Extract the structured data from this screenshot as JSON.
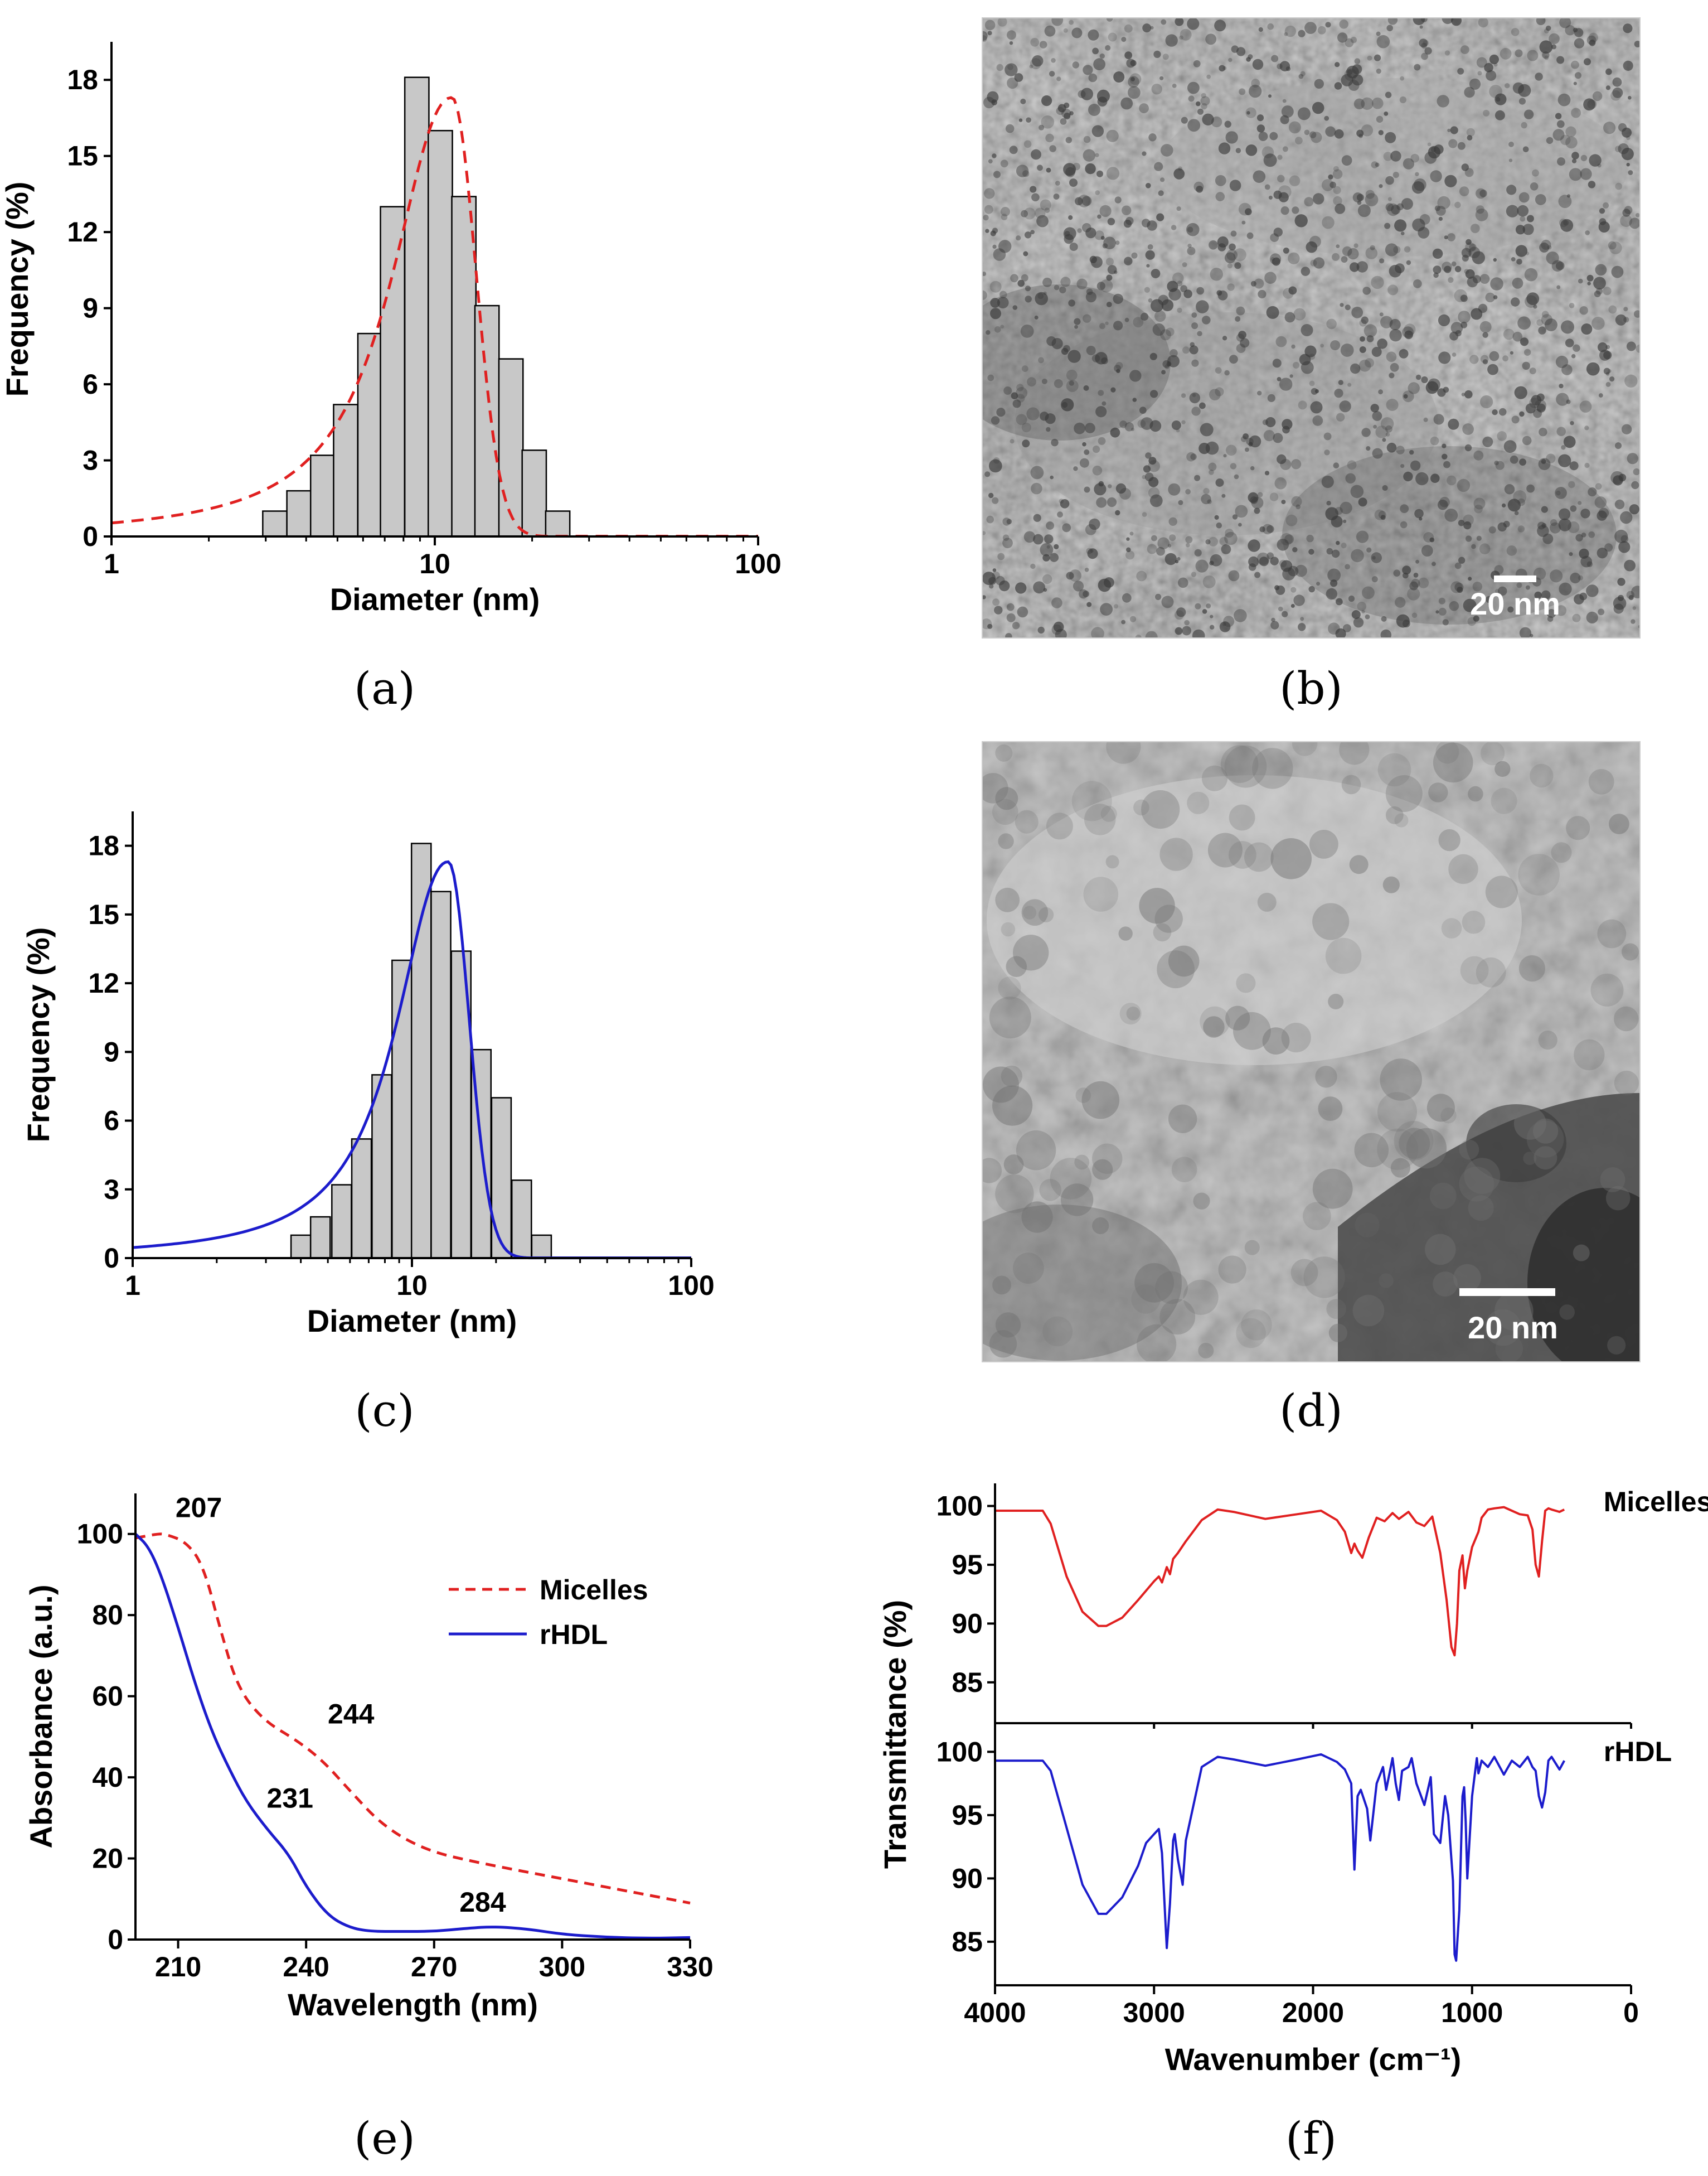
{
  "chart_data": [
    {
      "id": "a",
      "type": "bar",
      "caption": "(a)",
      "xlabel": "Diameter (nm)",
      "ylabel": "Frequency (%)",
      "xscale": "log",
      "xlim": [
        1,
        100
      ],
      "ylim": [
        0,
        19.5
      ],
      "xticks": [
        1,
        10,
        100
      ],
      "yticks": [
        0,
        3,
        6,
        9,
        12,
        15,
        18
      ],
      "bar_centers": [
        3.2,
        3.8,
        4.5,
        5.3,
        6.3,
        7.4,
        8.8,
        10.4,
        12.3,
        14.5,
        17.2,
        20.3,
        24.0
      ],
      "values": [
        1.0,
        1.8,
        3.2,
        5.2,
        8.0,
        13.0,
        18.1,
        16.0,
        13.4,
        9.1,
        7.0,
        3.4,
        1.0
      ],
      "fit": {
        "style": "dashed",
        "color": "#e02020",
        "peak_x": 11.3,
        "peak_y": 17.3
      }
    },
    {
      "id": "c",
      "type": "bar",
      "caption": "(c)",
      "xlabel": "Diameter (nm)",
      "ylabel": "Frequency (%)",
      "xscale": "log",
      "xlim": [
        1,
        100
      ],
      "ylim": [
        0,
        19.5
      ],
      "xticks": [
        1,
        10,
        100
      ],
      "yticks": [
        0,
        3,
        6,
        9,
        12,
        15,
        18
      ],
      "bar_centers": [
        4.0,
        4.7,
        5.6,
        6.6,
        7.8,
        9.2,
        10.8,
        12.7,
        15.0,
        17.7,
        20.9,
        24.7,
        29.1
      ],
      "values": [
        1.0,
        1.8,
        3.2,
        5.2,
        8.0,
        13.0,
        18.1,
        16.0,
        13.4,
        9.1,
        7.0,
        3.4,
        1.0
      ],
      "fit": {
        "style": "solid",
        "color": "#1c1ccc",
        "peak_x": 13.5,
        "peak_y": 17.3
      }
    },
    {
      "id": "e",
      "type": "line",
      "caption": "(e)",
      "xlabel": "Wavelength (nm)",
      "ylabel": "Absorbance (a.u.)",
      "xlim": [
        200,
        330
      ],
      "ylim": [
        0,
        110
      ],
      "xticks": [
        210,
        240,
        270,
        300,
        330
      ],
      "yticks": [
        0,
        20,
        40,
        60,
        80,
        100
      ],
      "legend": {
        "position": "top-right"
      },
      "series": [
        {
          "name": "Micelles",
          "color": "#e02020",
          "style": "dashed",
          "x": [
            200,
            205,
            207,
            212,
            216,
            220,
            224,
            230,
            238,
            244,
            250,
            258,
            268,
            280,
            300,
            320,
            330
          ],
          "y": [
            99,
            100,
            100,
            98,
            92,
            76,
            62,
            54,
            49,
            44,
            37,
            28,
            22,
            19,
            15,
            11,
            9
          ]
        },
        {
          "name": "rHDL",
          "color": "#1c1ccc",
          "style": "solid",
          "x": [
            200,
            203,
            206,
            210,
            214,
            218,
            222,
            226,
            231,
            236,
            240,
            245,
            250,
            255,
            262,
            270,
            278,
            284,
            292,
            300,
            310,
            320,
            330
          ],
          "y": [
            100,
            97,
            90,
            77,
            63,
            51,
            42,
            34,
            27,
            21,
            13,
            6,
            3,
            2,
            2,
            2,
            2.8,
            3.2,
            2.6,
            1.3,
            0.6,
            0.3,
            0.5
          ]
        }
      ],
      "annotations": [
        {
          "text": "207",
          "x": 207,
          "y": 100
        },
        {
          "text": "244",
          "x": 244,
          "y": 45
        },
        {
          "text": "231",
          "x": 231,
          "y": 27
        },
        {
          "text": "284",
          "x": 284,
          "y": 3
        }
      ]
    },
    {
      "id": "f",
      "type": "line",
      "caption": "(f)",
      "xlabel": "Wavenumber (cm⁻¹)",
      "ylabel": "Transmittance (%)",
      "xlim": [
        4000,
        0
      ],
      "xticks": [
        4000,
        3000,
        2000,
        1000,
        0
      ],
      "panels": [
        {
          "name": "Micelles",
          "color": "#e02020",
          "ylim": [
            82,
            100.5
          ],
          "yticks": [
            85,
            90,
            95,
            100
          ],
          "x": [
            4000,
            3700,
            3650,
            3550,
            3450,
            3350,
            3300,
            3200,
            3100,
            3000,
            2970,
            2950,
            2920,
            2900,
            2880,
            2850,
            2800,
            2700,
            2600,
            2500,
            2300,
            2100,
            1950,
            1850,
            1800,
            1760,
            1740,
            1720,
            1690,
            1650,
            1600,
            1550,
            1500,
            1460,
            1400,
            1350,
            1300,
            1250,
            1200,
            1160,
            1130,
            1110,
            1095,
            1080,
            1060,
            1045,
            1030,
            1000,
            960,
            940,
            900,
            860,
            800,
            750,
            700,
            650,
            620,
            600,
            580,
            560,
            540,
            520,
            500,
            450,
            420
          ],
          "y": [
            99.6,
            99.6,
            98.5,
            94,
            91,
            89.8,
            89.8,
            90.5,
            92,
            93.6,
            94,
            93.5,
            94.8,
            94.2,
            95.5,
            96,
            97,
            98.8,
            99.7,
            99.5,
            98.9,
            99.3,
            99.6,
            98.8,
            97.8,
            96,
            96.8,
            96.2,
            95.6,
            97.3,
            99,
            98.7,
            99.4,
            98.9,
            99.5,
            98.6,
            98.3,
            99.1,
            96,
            92,
            88,
            87.3,
            90,
            94.5,
            95.8,
            93,
            94.5,
            96.5,
            97.8,
            99,
            99.7,
            99.8,
            99.9,
            99.6,
            99.3,
            99.2,
            98,
            95,
            94,
            97,
            99.6,
            99.8,
            99.7,
            99.5,
            99.7
          ]
        },
        {
          "name": "rHDL",
          "color": "#1c1ccc",
          "ylim": [
            82,
            100.5
          ],
          "yticks": [
            85,
            90,
            95,
            100
          ],
          "x": [
            4000,
            3700,
            3650,
            3550,
            3450,
            3350,
            3300,
            3200,
            3100,
            3050,
            3000,
            2970,
            2950,
            2930,
            2920,
            2900,
            2880,
            2870,
            2850,
            2820,
            2800,
            2700,
            2600,
            2500,
            2300,
            2100,
            1950,
            1850,
            1800,
            1760,
            1740,
            1720,
            1700,
            1660,
            1640,
            1600,
            1560,
            1540,
            1500,
            1480,
            1460,
            1440,
            1400,
            1380,
            1350,
            1300,
            1260,
            1240,
            1200,
            1170,
            1150,
            1120,
            1110,
            1100,
            1080,
            1060,
            1050,
            1040,
            1030,
            1000,
            970,
            960,
            940,
            900,
            860,
            800,
            750,
            700,
            650,
            620,
            600,
            580,
            560,
            540,
            520,
            500,
            450,
            420
          ],
          "y": [
            99.3,
            99.3,
            98.5,
            94,
            89.5,
            87.2,
            87.2,
            88.5,
            91,
            92.8,
            93.5,
            93.9,
            92,
            87,
            84.5,
            88,
            93,
            93.5,
            91.5,
            89.5,
            93,
            98.8,
            99.6,
            99.4,
            98.9,
            99.4,
            99.8,
            99.2,
            98.6,
            97.5,
            90.7,
            96.5,
            97,
            95.5,
            93,
            97.5,
            98.8,
            97,
            99.5,
            97.5,
            96.2,
            98.5,
            98.8,
            99.5,
            97.5,
            95.8,
            98,
            93.5,
            92.8,
            96.5,
            95,
            89.8,
            84,
            83.5,
            87.5,
            96.5,
            97.2,
            94.5,
            90,
            96.5,
            99.5,
            98.3,
            99.3,
            98.8,
            99.6,
            98.2,
            99.3,
            98.8,
            99.6,
            98.8,
            98.5,
            96.5,
            95.6,
            96.8,
            99.3,
            99.6,
            98.6,
            99.3
          ]
        }
      ]
    }
  ],
  "images": [
    {
      "id": "b",
      "caption": "(b)",
      "scale_bar": "20 nm"
    },
    {
      "id": "d",
      "caption": "(d)",
      "scale_bar": "20 nm"
    }
  ]
}
